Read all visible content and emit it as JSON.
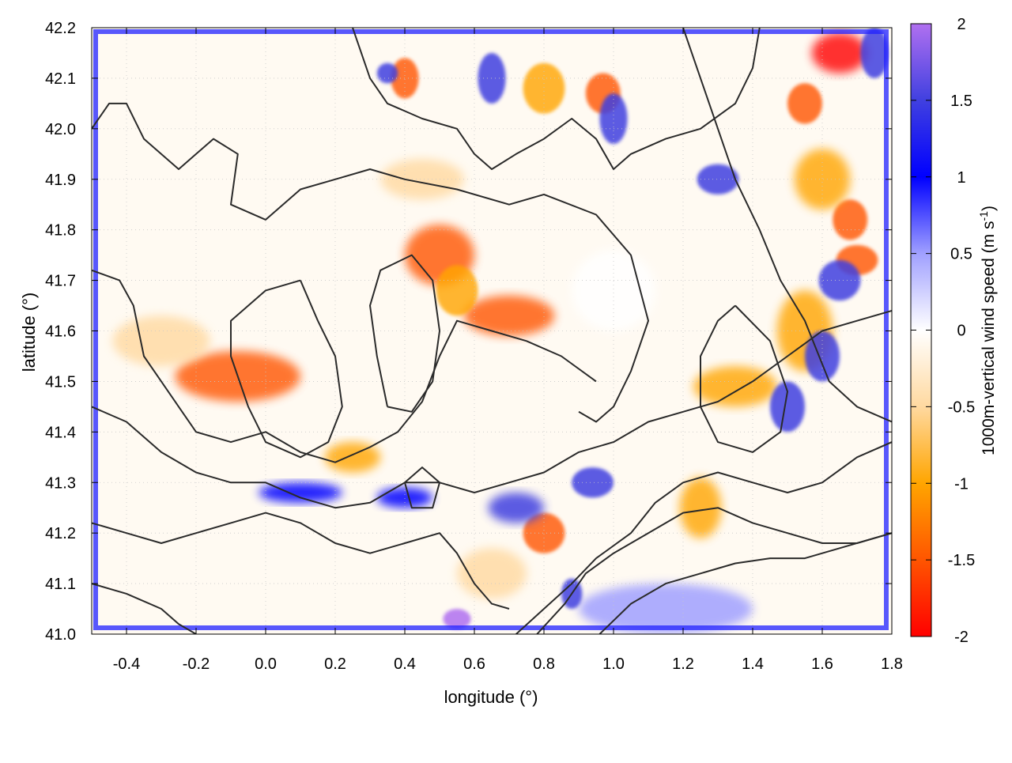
{
  "chart_data": {
    "type": "heatmap",
    "title": "",
    "xlabel": "longitude (°)",
    "ylabel": "latitude (°)",
    "colorbar_label": "1000m-vertical wind speed (m s",
    "colorbar_label_sup": "-1",
    "colorbar_label_close": ")",
    "xlim": [
      -0.5,
      1.8
    ],
    "ylim": [
      41.0,
      42.2
    ],
    "x_ticks": [
      -0.4,
      -0.2,
      0.0,
      0.2,
      0.4,
      0.6,
      0.8,
      1.0,
      1.2,
      1.4,
      1.6,
      1.8
    ],
    "x_tick_labels": [
      "-0.4",
      "-0.2",
      "0.0",
      "0.2",
      "0.4",
      "0.6",
      "0.8",
      "1.0",
      "1.2",
      "1.4",
      "1.6",
      "1.8"
    ],
    "y_ticks": [
      41.0,
      41.1,
      41.2,
      41.3,
      41.4,
      41.5,
      41.6,
      41.7,
      41.8,
      41.9,
      42.0,
      42.1,
      42.2
    ],
    "y_tick_labels": [
      "41.0",
      "41.1",
      "41.2",
      "41.3",
      "41.4",
      "41.5",
      "41.6",
      "41.7",
      "41.8",
      "41.9",
      "42.0",
      "42.1",
      "42.2"
    ],
    "colorbar_range": [
      -2,
      2
    ],
    "colorbar_ticks": [
      -2,
      -1.5,
      -1,
      -0.5,
      0,
      0.5,
      1,
      1.5,
      2
    ],
    "colorbar_tick_labels": [
      "-2",
      "-1.5",
      "-1",
      "-0.5",
      "0",
      "0.5",
      "1",
      "1.5",
      "2"
    ],
    "colormap": [
      {
        "v": -2.0,
        "color": "#ff0000"
      },
      {
        "v": -1.5,
        "color": "#ff5500"
      },
      {
        "v": -1.0,
        "color": "#ffa500"
      },
      {
        "v": -0.5,
        "color": "#ffd9a0"
      },
      {
        "v": 0.0,
        "color": "#ffffff"
      },
      {
        "v": 0.5,
        "color": "#a0a0ff"
      },
      {
        "v": 1.0,
        "color": "#0000ff"
      },
      {
        "v": 1.5,
        "color": "#4040e0"
      },
      {
        "v": 2.0,
        "color": "#b070f0"
      }
    ],
    "grid": true,
    "legend": "colorbar-right",
    "field_features": [
      {
        "kind": "downdraft",
        "lon": -0.08,
        "lat": 41.51,
        "v": -1.4,
        "rlon": 0.18,
        "rlat": 0.05
      },
      {
        "kind": "downdraft",
        "lon": -0.3,
        "lat": 41.58,
        "v": -0.7,
        "rlon": 0.14,
        "rlat": 0.05
      },
      {
        "kind": "downdraft",
        "lon": 0.5,
        "lat": 41.75,
        "v": -1.3,
        "rlon": 0.1,
        "rlat": 0.06
      },
      {
        "kind": "downdraft",
        "lon": 0.7,
        "lat": 41.63,
        "v": -1.6,
        "rlon": 0.13,
        "rlat": 0.04
      },
      {
        "kind": "downdraft",
        "lon": 0.55,
        "lat": 41.68,
        "v": -1.0,
        "rlon": 0.06,
        "rlat": 0.05
      },
      {
        "kind": "downdraft",
        "lon": 0.45,
        "lat": 41.9,
        "v": -0.6,
        "rlon": 0.12,
        "rlat": 0.04
      },
      {
        "kind": "downdraft",
        "lon": 0.4,
        "lat": 42.1,
        "v": -1.7,
        "rlon": 0.04,
        "rlat": 0.04
      },
      {
        "kind": "downdraft",
        "lon": 0.8,
        "lat": 42.08,
        "v": -1.2,
        "rlon": 0.06,
        "rlat": 0.05
      },
      {
        "kind": "downdraft",
        "lon": 0.97,
        "lat": 42.07,
        "v": -1.6,
        "rlon": 0.05,
        "rlat": 0.04
      },
      {
        "kind": "downdraft",
        "lon": 1.55,
        "lat": 42.05,
        "v": -1.6,
        "rlon": 0.05,
        "rlat": 0.04
      },
      {
        "kind": "downdraft",
        "lon": 1.65,
        "lat": 42.15,
        "v": -1.8,
        "rlon": 0.08,
        "rlat": 0.04
      },
      {
        "kind": "downdraft",
        "lon": 1.68,
        "lat": 41.82,
        "v": -1.7,
        "rlon": 0.05,
        "rlat": 0.04
      },
      {
        "kind": "downdraft",
        "lon": 1.7,
        "lat": 41.74,
        "v": -1.6,
        "rlon": 0.06,
        "rlat": 0.03
      },
      {
        "kind": "downdraft",
        "lon": 1.35,
        "lat": 41.49,
        "v": -1.2,
        "rlon": 0.12,
        "rlat": 0.04
      },
      {
        "kind": "downdraft",
        "lon": 1.55,
        "lat": 41.6,
        "v": -0.8,
        "rlon": 0.08,
        "rlat": 0.08
      },
      {
        "kind": "downdraft",
        "lon": 1.25,
        "lat": 41.25,
        "v": -1.1,
        "rlon": 0.06,
        "rlat": 0.06
      },
      {
        "kind": "downdraft",
        "lon": 0.8,
        "lat": 41.2,
        "v": -1.4,
        "rlon": 0.06,
        "rlat": 0.04
      },
      {
        "kind": "downdraft",
        "lon": 0.25,
        "lat": 41.35,
        "v": -0.8,
        "rlon": 0.08,
        "rlat": 0.03
      },
      {
        "kind": "downdraft",
        "lon": 0.65,
        "lat": 41.12,
        "v": -0.6,
        "rlon": 0.1,
        "rlat": 0.05
      },
      {
        "kind": "downdraft",
        "lon": 1.6,
        "lat": 41.9,
        "v": -0.9,
        "rlon": 0.08,
        "rlat": 0.06
      },
      {
        "kind": "updraft",
        "lon": 1.15,
        "lat": 41.05,
        "v": 0.3,
        "rlon": 0.25,
        "rlat": 0.05
      },
      {
        "kind": "updraft",
        "lon": 1.0,
        "lat": 41.68,
        "v": 0.25,
        "rlon": 0.12,
        "rlat": 0.08
      },
      {
        "kind": "updraft",
        "lon": 0.1,
        "lat": 41.28,
        "v": 1.0,
        "rlon": 0.12,
        "rlat": 0.02
      },
      {
        "kind": "updraft",
        "lon": 0.4,
        "lat": 41.27,
        "v": 1.2,
        "rlon": 0.08,
        "rlat": 0.02
      },
      {
        "kind": "updraft",
        "lon": 0.72,
        "lat": 41.25,
        "v": 1.5,
        "rlon": 0.08,
        "rlat": 0.03
      },
      {
        "kind": "updraft",
        "lon": 0.94,
        "lat": 41.3,
        "v": 1.6,
        "rlon": 0.06,
        "rlat": 0.03
      },
      {
        "kind": "updraft",
        "lon": 1.5,
        "lat": 41.45,
        "v": 1.7,
        "rlon": 0.05,
        "rlat": 0.05
      },
      {
        "kind": "updraft",
        "lon": 1.65,
        "lat": 41.7,
        "v": 1.6,
        "rlon": 0.06,
        "rlat": 0.04
      },
      {
        "kind": "updraft",
        "lon": 1.6,
        "lat": 41.55,
        "v": 1.5,
        "rlon": 0.05,
        "rlat": 0.05
      },
      {
        "kind": "updraft",
        "lon": 1.3,
        "lat": 41.9,
        "v": 1.4,
        "rlon": 0.06,
        "rlat": 0.03
      },
      {
        "kind": "updraft",
        "lon": 1.0,
        "lat": 42.02,
        "v": 1.5,
        "rlon": 0.04,
        "rlat": 0.05
      },
      {
        "kind": "updraft",
        "lon": 0.65,
        "lat": 42.1,
        "v": 1.4,
        "rlon": 0.04,
        "rlat": 0.05
      },
      {
        "kind": "updraft",
        "lon": 0.35,
        "lat": 42.11,
        "v": 1.7,
        "rlon": 0.03,
        "rlat": 0.02
      },
      {
        "kind": "updraft",
        "lon": 1.75,
        "lat": 42.15,
        "v": 1.6,
        "rlon": 0.04,
        "rlat": 0.05
      },
      {
        "kind": "updraft",
        "lon": 0.55,
        "lat": 41.03,
        "v": 1.8,
        "rlon": 0.04,
        "rlat": 0.02
      },
      {
        "kind": "updraft",
        "lon": 0.88,
        "lat": 41.08,
        "v": 1.6,
        "rlon": 0.03,
        "rlat": 0.03
      }
    ],
    "contours": [
      [
        [
          -0.5,
          42.0
        ],
        [
          -0.45,
          42.05
        ],
        [
          -0.4,
          42.05
        ],
        [
          -0.35,
          41.98
        ],
        [
          -0.25,
          41.92
        ],
        [
          -0.2,
          41.95
        ],
        [
          -0.15,
          41.98
        ],
        [
          -0.08,
          41.95
        ],
        [
          -0.1,
          41.85
        ],
        [
          0.0,
          41.82
        ],
        [
          0.1,
          41.88
        ],
        [
          0.2,
          41.9
        ],
        [
          0.3,
          41.92
        ],
        [
          0.4,
          41.9
        ],
        [
          0.55,
          41.88
        ],
        [
          0.7,
          41.85
        ],
        [
          0.8,
          41.87
        ],
        [
          0.95,
          41.83
        ],
        [
          1.05,
          41.75
        ],
        [
          1.1,
          41.62
        ],
        [
          1.05,
          41.52
        ],
        [
          1.0,
          41.45
        ],
        [
          0.95,
          41.42
        ],
        [
          0.9,
          41.44
        ]
      ],
      [
        [
          -0.5,
          41.72
        ],
        [
          -0.42,
          41.7
        ],
        [
          -0.38,
          41.65
        ],
        [
          -0.35,
          41.55
        ],
        [
          -0.3,
          41.5
        ],
        [
          -0.25,
          41.45
        ],
        [
          -0.2,
          41.4
        ],
        [
          -0.1,
          41.38
        ],
        [
          0.0,
          41.4
        ],
        [
          0.1,
          41.36
        ],
        [
          0.2,
          41.34
        ],
        [
          0.3,
          41.37
        ],
        [
          0.38,
          41.4
        ],
        [
          0.45,
          41.46
        ],
        [
          0.5,
          41.55
        ],
        [
          0.55,
          41.62
        ],
        [
          0.65,
          41.6
        ],
        [
          0.75,
          41.58
        ],
        [
          0.85,
          41.55
        ],
        [
          0.95,
          41.5
        ]
      ],
      [
        [
          -0.5,
          41.45
        ],
        [
          -0.4,
          41.42
        ],
        [
          -0.3,
          41.36
        ],
        [
          -0.2,
          41.32
        ],
        [
          -0.1,
          41.3
        ],
        [
          0.0,
          41.3
        ],
        [
          0.1,
          41.27
        ],
        [
          0.2,
          41.25
        ],
        [
          0.3,
          41.26
        ],
        [
          0.4,
          41.3
        ],
        [
          0.5,
          41.3
        ],
        [
          0.6,
          41.28
        ],
        [
          0.7,
          41.3
        ],
        [
          0.8,
          41.32
        ],
        [
          0.9,
          41.36
        ],
        [
          1.0,
          41.38
        ],
        [
          1.1,
          41.42
        ],
        [
          1.2,
          41.44
        ],
        [
          1.3,
          41.46
        ],
        [
          1.4,
          41.5
        ],
        [
          1.5,
          41.55
        ],
        [
          1.6,
          41.6
        ],
        [
          1.7,
          41.62
        ],
        [
          1.8,
          41.64
        ]
      ],
      [
        [
          -0.5,
          41.22
        ],
        [
          -0.4,
          41.2
        ],
        [
          -0.3,
          41.18
        ],
        [
          -0.2,
          41.2
        ],
        [
          -0.1,
          41.22
        ],
        [
          0.0,
          41.24
        ],
        [
          0.1,
          41.22
        ],
        [
          0.2,
          41.18
        ],
        [
          0.3,
          41.16
        ],
        [
          0.4,
          41.18
        ],
        [
          0.5,
          41.2
        ],
        [
          0.55,
          41.16
        ],
        [
          0.6,
          41.1
        ],
        [
          0.65,
          41.06
        ],
        [
          0.7,
          41.05
        ]
      ],
      [
        [
          -0.5,
          41.1
        ],
        [
          -0.4,
          41.08
        ],
        [
          -0.3,
          41.05
        ],
        [
          -0.25,
          41.02
        ],
        [
          -0.2,
          41.0
        ]
      ],
      [
        [
          0.72,
          41.0
        ],
        [
          0.8,
          41.05
        ],
        [
          0.88,
          41.1
        ],
        [
          0.95,
          41.15
        ],
        [
          1.05,
          41.2
        ],
        [
          1.12,
          41.26
        ],
        [
          1.2,
          41.3
        ],
        [
          1.3,
          41.32
        ],
        [
          1.4,
          41.3
        ],
        [
          1.5,
          41.28
        ],
        [
          1.6,
          41.3
        ],
        [
          1.7,
          41.35
        ],
        [
          1.8,
          41.38
        ]
      ],
      [
        [
          0.78,
          41.0
        ],
        [
          0.86,
          41.06
        ],
        [
          0.92,
          41.12
        ],
        [
          1.0,
          41.16
        ],
        [
          1.1,
          41.2
        ],
        [
          1.2,
          41.24
        ],
        [
          1.3,
          41.25
        ],
        [
          1.4,
          41.22
        ],
        [
          1.5,
          41.2
        ],
        [
          1.6,
          41.18
        ],
        [
          1.7,
          41.18
        ],
        [
          1.8,
          41.2
        ]
      ],
      [
        [
          0.96,
          41.0
        ],
        [
          1.05,
          41.06
        ],
        [
          1.15,
          41.1
        ],
        [
          1.25,
          41.12
        ],
        [
          1.35,
          41.14
        ],
        [
          1.45,
          41.15
        ],
        [
          1.55,
          41.15
        ],
        [
          1.65,
          41.17
        ],
        [
          1.75,
          41.19
        ],
        [
          1.8,
          41.2
        ]
      ],
      [
        [
          0.25,
          42.2
        ],
        [
          0.3,
          42.1
        ],
        [
          0.35,
          42.05
        ],
        [
          0.45,
          42.02
        ],
        [
          0.55,
          42.0
        ],
        [
          0.6,
          41.95
        ],
        [
          0.65,
          41.92
        ],
        [
          0.72,
          41.95
        ],
        [
          0.8,
          41.98
        ],
        [
          0.88,
          42.02
        ],
        [
          0.95,
          41.98
        ],
        [
          1.0,
          41.92
        ],
        [
          1.05,
          41.95
        ],
        [
          1.15,
          41.98
        ],
        [
          1.25,
          42.0
        ],
        [
          1.35,
          42.05
        ],
        [
          1.4,
          42.12
        ],
        [
          1.42,
          42.2
        ]
      ],
      [
        [
          1.2,
          42.2
        ],
        [
          1.25,
          42.1
        ],
        [
          1.3,
          42.0
        ],
        [
          1.35,
          41.9
        ],
        [
          1.42,
          41.8
        ],
        [
          1.48,
          41.7
        ],
        [
          1.55,
          41.62
        ],
        [
          1.62,
          41.5
        ],
        [
          1.7,
          41.45
        ],
        [
          1.8,
          41.42
        ]
      ],
      [
        [
          0.1,
          41.7
        ],
        [
          0.15,
          41.62
        ],
        [
          0.2,
          41.55
        ],
        [
          0.22,
          41.45
        ],
        [
          0.18,
          41.38
        ],
        [
          0.1,
          41.35
        ],
        [
          0.0,
          41.38
        ],
        [
          -0.05,
          41.45
        ],
        [
          -0.1,
          41.55
        ],
        [
          -0.1,
          41.62
        ],
        [
          0.0,
          41.68
        ],
        [
          0.1,
          41.7
        ]
      ],
      [
        [
          0.35,
          41.45
        ],
        [
          0.32,
          41.55
        ],
        [
          0.3,
          41.65
        ],
        [
          0.33,
          41.72
        ],
        [
          0.42,
          41.75
        ],
        [
          0.48,
          41.7
        ],
        [
          0.5,
          41.6
        ],
        [
          0.48,
          41.5
        ],
        [
          0.42,
          41.44
        ],
        [
          0.35,
          41.45
        ]
      ],
      [
        [
          1.35,
          41.65
        ],
        [
          1.45,
          41.58
        ],
        [
          1.5,
          41.48
        ],
        [
          1.48,
          41.4
        ],
        [
          1.4,
          41.36
        ],
        [
          1.3,
          41.38
        ],
        [
          1.25,
          41.45
        ],
        [
          1.25,
          41.55
        ],
        [
          1.3,
          41.62
        ],
        [
          1.35,
          41.65
        ]
      ],
      [
        [
          0.4,
          41.3
        ],
        [
          0.45,
          41.33
        ],
        [
          0.5,
          41.3
        ],
        [
          0.48,
          41.25
        ],
        [
          0.42,
          41.25
        ],
        [
          0.4,
          41.3
        ]
      ]
    ]
  }
}
